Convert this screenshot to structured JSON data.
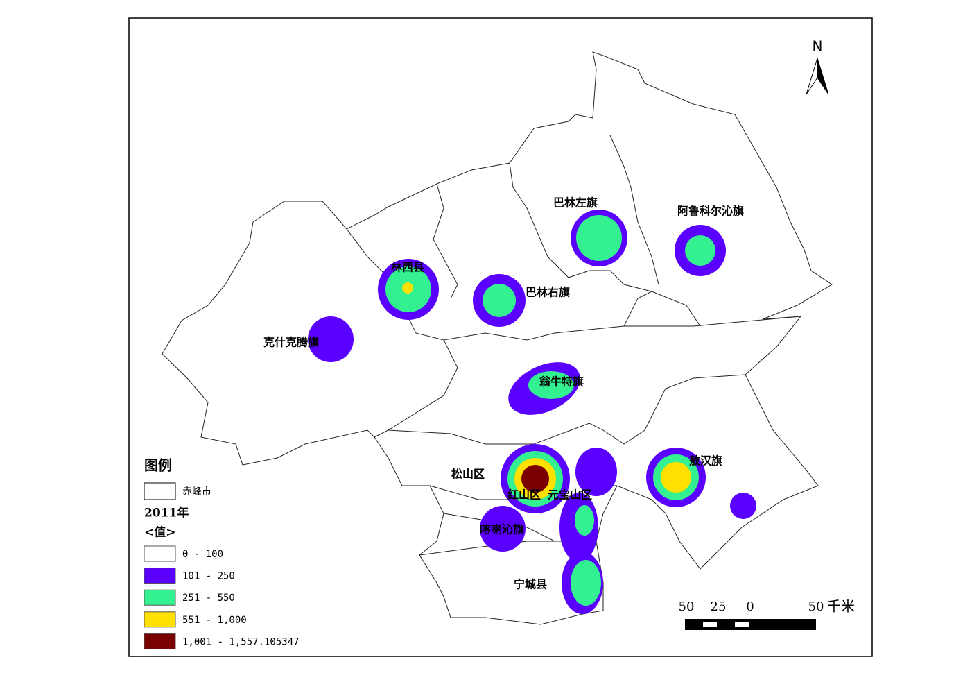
{
  "north": "N",
  "regions": [
    "巴林左旗",
    "阿鲁科尔沁旗",
    "林西县",
    "巴林右旗",
    "克什克腾旗",
    "翁牛特旗",
    "敖汉旗",
    "松山区",
    "红山区",
    "元宝山区",
    "喀喇沁旗",
    "宁城县"
  ],
  "legend": {
    "title": "图例",
    "boundary_label": "赤峰市",
    "year": "2011年",
    "field": "<值>",
    "classes": [
      {
        "label": "0 - 100",
        "color": "#ffffff"
      },
      {
        "label": "101 - 250",
        "color": "#5a00ff"
      },
      {
        "label": "251 - 550",
        "color": "#33f090"
      },
      {
        "label": "551 - 1,000",
        "color": "#ffe000"
      },
      {
        "label": "1,001 - 1,557.105347",
        "color": "#7a0000"
      }
    ]
  },
  "scale_bar": {
    "labels": [
      50,
      25,
      0,
      50
    ],
    "unit": "千米"
  }
}
